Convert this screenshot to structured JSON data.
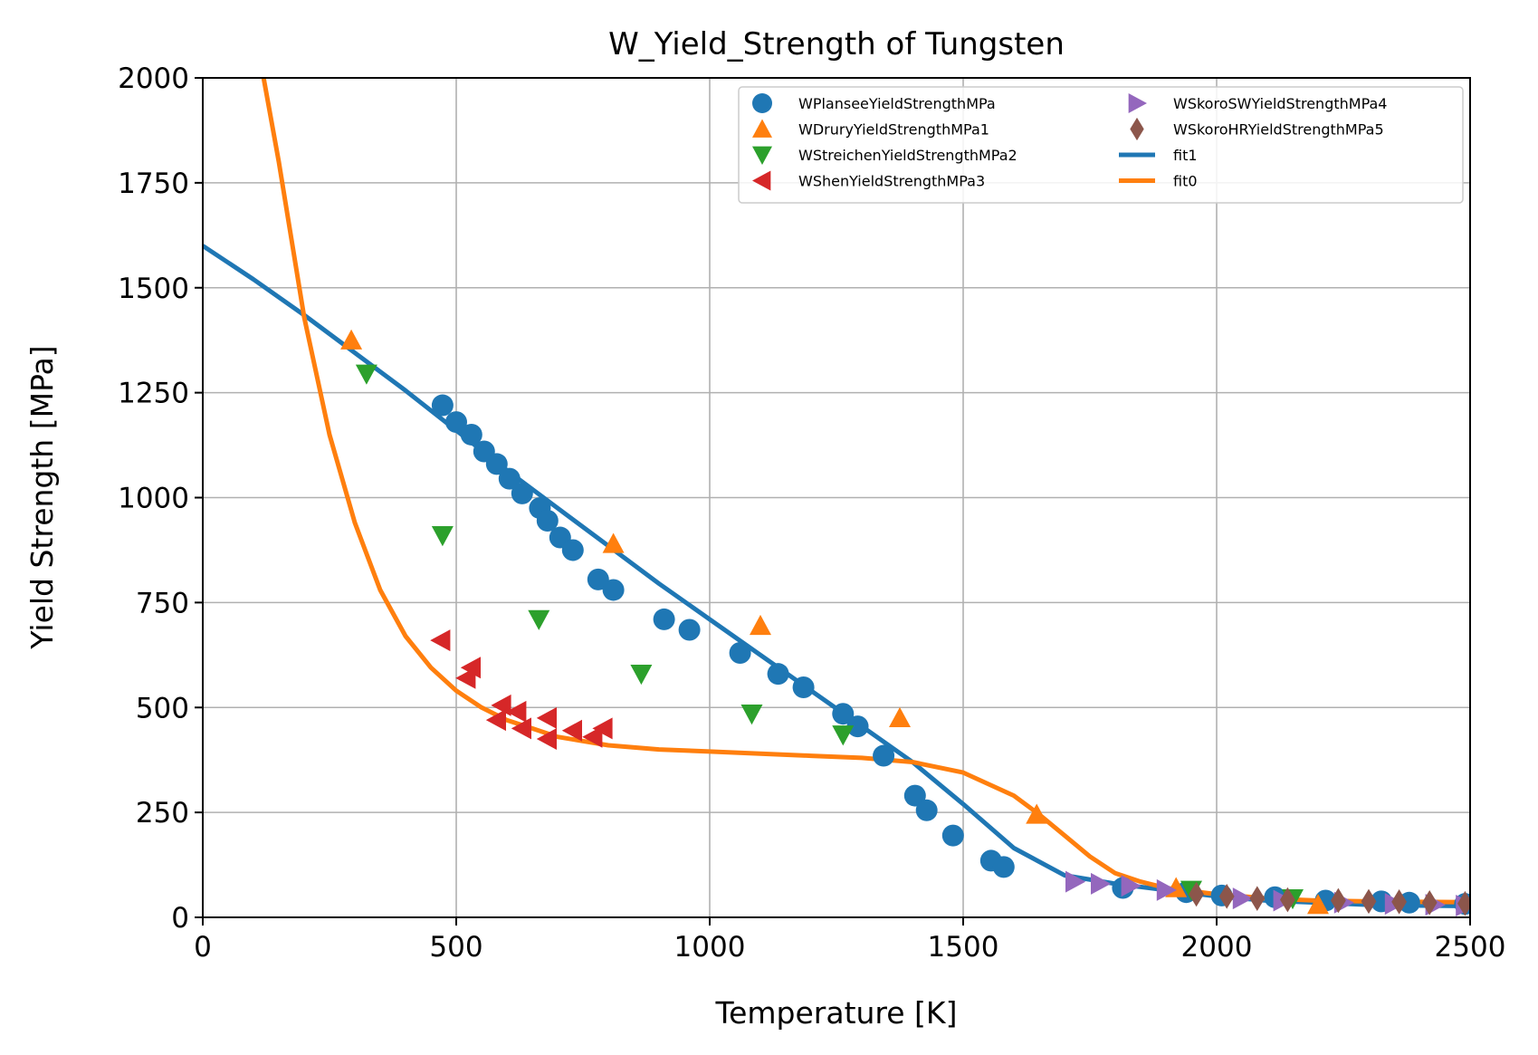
{
  "chart_data": {
    "type": "scatter",
    "title": "W_Yield_Strength of Tungsten",
    "xlabel": "Temperature [K]",
    "ylabel": "Yield Strength [MPa]",
    "xlim": [
      0,
      2500
    ],
    "ylim": [
      0,
      2000
    ],
    "xticks": [
      "0",
      "500",
      "1000",
      "1500",
      "2000",
      "2500"
    ],
    "yticks": [
      "0",
      "250",
      "500",
      "750",
      "1000",
      "1250",
      "1500",
      "1750",
      "2000"
    ],
    "xtick_values": [
      0,
      500,
      1000,
      1500,
      2000,
      2500
    ],
    "ytick_values": [
      0,
      250,
      500,
      750,
      1000,
      1250,
      1500,
      1750,
      2000
    ],
    "grid": true,
    "legend_position": "top-right",
    "legend_columns": 2,
    "series": [
      {
        "name": "WPlanseeYieldStrengthMPa",
        "marker": "circle",
        "color": "#1f77b4",
        "points": [
          [
            473,
            1220
          ],
          [
            500,
            1180
          ],
          [
            530,
            1150
          ],
          [
            555,
            1110
          ],
          [
            580,
            1080
          ],
          [
            605,
            1045
          ],
          [
            630,
            1010
          ],
          [
            665,
            975
          ],
          [
            680,
            945
          ],
          [
            705,
            905
          ],
          [
            730,
            875
          ],
          [
            780,
            805
          ],
          [
            810,
            780
          ],
          [
            910,
            710
          ],
          [
            960,
            685
          ],
          [
            1060,
            630
          ],
          [
            1135,
            580
          ],
          [
            1185,
            548
          ],
          [
            1263,
            485
          ],
          [
            1292,
            455
          ],
          [
            1343,
            385
          ],
          [
            1405,
            290
          ],
          [
            1428,
            255
          ],
          [
            1480,
            195
          ],
          [
            1555,
            135
          ],
          [
            1580,
            120
          ],
          [
            1815,
            70
          ],
          [
            1940,
            60
          ],
          [
            2010,
            52
          ],
          [
            2115,
            48
          ],
          [
            2215,
            40
          ],
          [
            2325,
            38
          ],
          [
            2380,
            35
          ],
          [
            2490,
            32
          ]
        ]
      },
      {
        "name": "WDruryYieldStrengthMPa1",
        "marker": "triangle-up",
        "color": "#ff7f0e",
        "points": [
          [
            293,
            1375
          ],
          [
            810,
            890
          ],
          [
            1100,
            695
          ],
          [
            1375,
            475
          ],
          [
            1645,
            245
          ],
          [
            1920,
            70
          ],
          [
            2200,
            30
          ]
        ]
      },
      {
        "name": "WStreichenYieldStrengthMPa2",
        "marker": "triangle-down",
        "color": "#2ca02c",
        "points": [
          [
            323,
            1295
          ],
          [
            473,
            910
          ],
          [
            663,
            710
          ],
          [
            865,
            580
          ],
          [
            1083,
            485
          ],
          [
            1263,
            435
          ],
          [
            1950,
            65
          ],
          [
            2150,
            45
          ]
        ]
      },
      {
        "name": "WShenYieldStrengthMPa3",
        "marker": "triangle-left",
        "color": "#d62728",
        "points": [
          [
            470,
            660
          ],
          [
            530,
            595
          ],
          [
            520,
            570
          ],
          [
            590,
            505
          ],
          [
            580,
            470
          ],
          [
            620,
            490
          ],
          [
            630,
            450
          ],
          [
            680,
            475
          ],
          [
            680,
            425
          ],
          [
            730,
            445
          ],
          [
            790,
            450
          ],
          [
            770,
            430
          ]
        ]
      },
      {
        "name": "WSkoroSWYieldStrengthMPa4",
        "marker": "triangle-right",
        "color": "#9467bd",
        "points": [
          [
            1720,
            85
          ],
          [
            1770,
            80
          ],
          [
            1830,
            75
          ],
          [
            1900,
            65
          ],
          [
            2050,
            45
          ],
          [
            2130,
            40
          ],
          [
            2250,
            35
          ],
          [
            2350,
            32
          ],
          [
            2430,
            30
          ],
          [
            2490,
            28
          ]
        ]
      },
      {
        "name": "WSkoroHRYieldStrengthMPa5",
        "marker": "diamond",
        "color": "#8c564b",
        "points": [
          [
            1960,
            55
          ],
          [
            2020,
            50
          ],
          [
            2080,
            45
          ],
          [
            2140,
            42
          ],
          [
            2240,
            40
          ],
          [
            2300,
            38
          ],
          [
            2360,
            37
          ],
          [
            2420,
            35
          ],
          [
            2490,
            33
          ]
        ]
      }
    ],
    "lines": [
      {
        "name": "fit1",
        "color": "#1f77b4",
        "points": [
          [
            0,
            1600
          ],
          [
            100,
            1520
          ],
          [
            200,
            1435
          ],
          [
            300,
            1345
          ],
          [
            400,
            1255
          ],
          [
            500,
            1160
          ],
          [
            600,
            1065
          ],
          [
            700,
            975
          ],
          [
            800,
            885
          ],
          [
            900,
            795
          ],
          [
            1000,
            710
          ],
          [
            1100,
            625
          ],
          [
            1200,
            540
          ],
          [
            1300,
            455
          ],
          [
            1400,
            370
          ],
          [
            1500,
            270
          ],
          [
            1600,
            165
          ],
          [
            1700,
            100
          ],
          [
            1800,
            80
          ],
          [
            1900,
            65
          ],
          [
            2000,
            50
          ],
          [
            2100,
            40
          ],
          [
            2200,
            35
          ],
          [
            2300,
            30
          ],
          [
            2400,
            28
          ],
          [
            2500,
            27
          ]
        ]
      },
      {
        "name": "fit0",
        "color": "#ff7f0e",
        "points": [
          [
            120,
            2000
          ],
          [
            150,
            1800
          ],
          [
            200,
            1430
          ],
          [
            250,
            1150
          ],
          [
            300,
            940
          ],
          [
            350,
            780
          ],
          [
            400,
            670
          ],
          [
            450,
            595
          ],
          [
            500,
            540
          ],
          [
            550,
            500
          ],
          [
            600,
            470
          ],
          [
            650,
            450
          ],
          [
            700,
            430
          ],
          [
            800,
            410
          ],
          [
            900,
            400
          ],
          [
            1000,
            395
          ],
          [
            1100,
            390
          ],
          [
            1200,
            385
          ],
          [
            1300,
            380
          ],
          [
            1400,
            370
          ],
          [
            1500,
            345
          ],
          [
            1600,
            290
          ],
          [
            1650,
            245
          ],
          [
            1700,
            195
          ],
          [
            1750,
            145
          ],
          [
            1800,
            105
          ],
          [
            1850,
            85
          ],
          [
            1900,
            70
          ],
          [
            2000,
            55
          ],
          [
            2100,
            45
          ],
          [
            2200,
            40
          ],
          [
            2300,
            38
          ],
          [
            2400,
            37
          ],
          [
            2500,
            36
          ]
        ]
      }
    ]
  }
}
